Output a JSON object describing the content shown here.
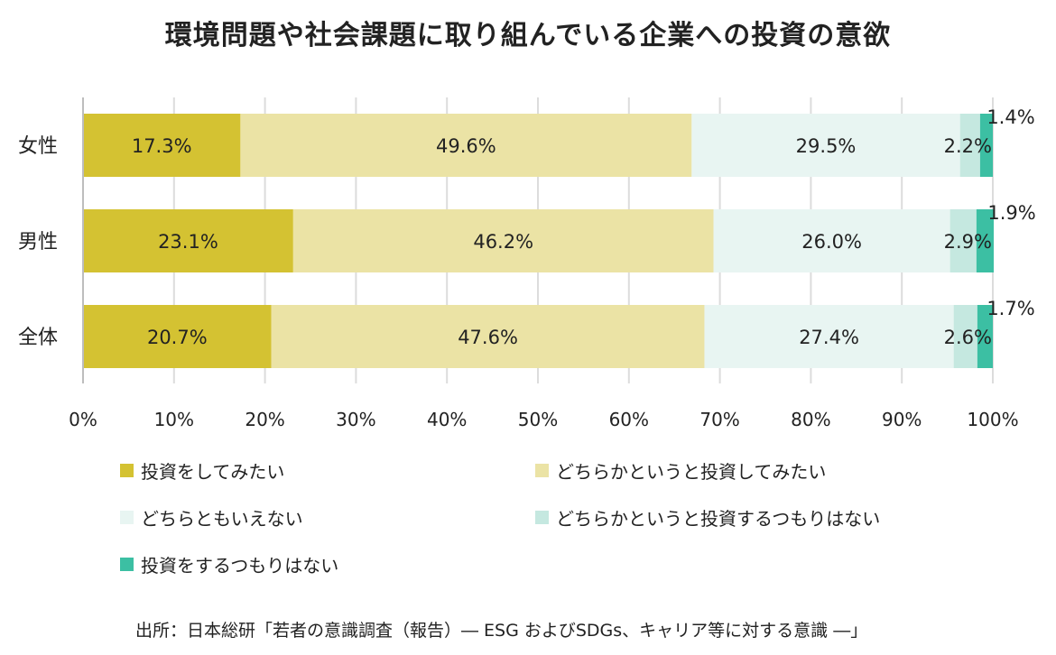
{
  "title": "環境問題や社会課題に取り組んでいる企業への投資の意欲",
  "source": "出所：日本総研「若者の意識調査（報告）― ESG およびSDGs、キャリア等に対する意識 ―」",
  "colors": [
    "#d4c232",
    "#ebe3a5",
    "#e8f5f2",
    "#c5e8e0",
    "#3cbfa3"
  ],
  "chart_data": {
    "type": "bar",
    "orientation": "horizontal",
    "stacked": true,
    "title": "環境問題や社会課題に取り組んでいる企業への投資の意欲",
    "categories": [
      "女性",
      "男性",
      "全体"
    ],
    "series": [
      {
        "name": "投資をしてみたい",
        "values": [
          17.3,
          23.1,
          20.7
        ]
      },
      {
        "name": "どちらかというと投資してみたい",
        "values": [
          49.6,
          46.2,
          47.6
        ]
      },
      {
        "name": "どちらともいえない",
        "values": [
          29.5,
          26.0,
          27.4
        ]
      },
      {
        "name": "どちらかというと投資するつもりはない",
        "values": [
          2.2,
          2.9,
          2.6
        ]
      },
      {
        "name": "投資をするつもりはない",
        "values": [
          1.4,
          1.9,
          1.7
        ]
      }
    ],
    "xlim": [
      0,
      100
    ],
    "x_ticks": [
      "0%",
      "10%",
      "20%",
      "30%",
      "40%",
      "50%",
      "60%",
      "70%",
      "80%",
      "90%",
      "100%"
    ],
    "grid": true,
    "legend_position": "bottom"
  }
}
